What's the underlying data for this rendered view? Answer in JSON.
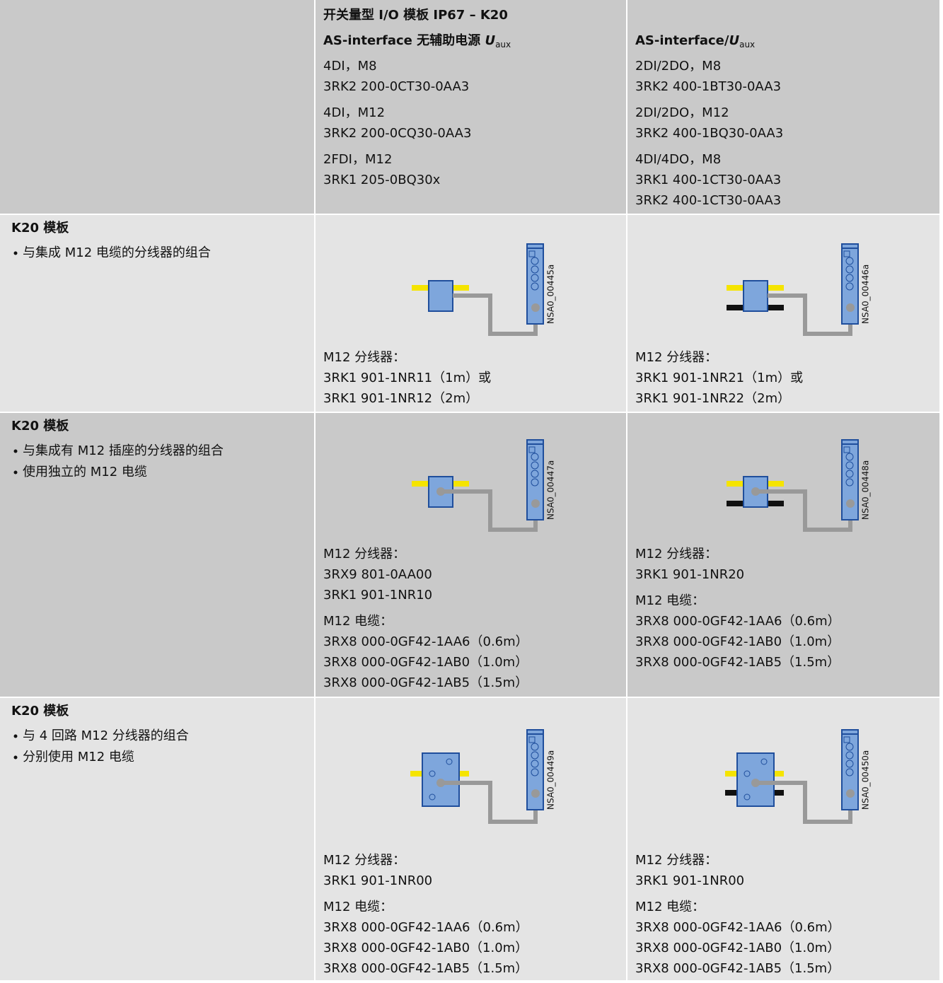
{
  "header": {
    "col2": {
      "title": "开关量型 I/O 模板 IP67 – K20",
      "subtitle": {
        "prefix": "AS-interface 无辅助电源 ",
        "var": "U",
        "sub": "aux"
      },
      "items": [
        [
          "4DI，M8",
          "3RK2 200-0CT30-0AA3"
        ],
        [
          "4DI，M12",
          "3RK2 200-0CQ30-0AA3"
        ],
        [
          "2FDI，M12",
          "3RK1 205-0BQ30x"
        ]
      ]
    },
    "col3": {
      "subtitle": {
        "prefix": "AS-interface/",
        "var": "U",
        "sub": "aux"
      },
      "items": [
        [
          "2DI/2DO，M8",
          "3RK2 400-1BT30-0AA3"
        ],
        [
          "2DI/2DO，M12",
          "3RK2 400-1BQ30-0AA3"
        ],
        [
          "4DI/4DO，M8",
          "3RK1 400-1CT30-0AA3",
          "3RK2 400-1CT30-0AA3"
        ]
      ]
    }
  },
  "rows": [
    {
      "title": "K20 模板",
      "bullets": [
        "与集成 M12 电缆的分线器的组合"
      ],
      "cells": [
        {
          "diagram": "NSA0_00445a",
          "groups": [
            [
              "M12 分线器：",
              "3RK1 901-1NR11（1m）或",
              "3RK1 901-1NR12（2m）"
            ]
          ]
        },
        {
          "diagram": "NSA0_00446a",
          "groups": [
            [
              "M12 分线器：",
              "3RK1 901-1NR21（1m）或",
              "3RK1 901-1NR22（2m）"
            ]
          ]
        }
      ]
    },
    {
      "title": "K20 模板",
      "bullets": [
        "与集成有 M12 插座的分线器的组合",
        "使用独立的 M12 电缆"
      ],
      "cells": [
        {
          "diagram": "NSA0_00447a",
          "groups": [
            [
              "M12 分线器：",
              "3RX9 801-0AA00",
              "3RK1 901-1NR10"
            ],
            [
              "M12 电缆：",
              "3RX8 000-0GF42-1AA6（0.6m）",
              "3RX8 000-0GF42-1AB0（1.0m）",
              "3RX8 000-0GF42-1AB5（1.5m）"
            ]
          ]
        },
        {
          "diagram": "NSA0_00448a",
          "groups": [
            [
              "M12 分线器：",
              "3RK1 901-1NR20"
            ],
            [
              "M12 电缆：",
              "3RX8 000-0GF42-1AA6（0.6m）",
              "3RX8 000-0GF42-1AB0（1.0m）",
              "3RX8 000-0GF42-1AB5（1.5m）"
            ]
          ]
        }
      ]
    },
    {
      "title": "K20 模板",
      "bullets": [
        "与 4 回路 M12 分线器的组合",
        "分别使用 M12 电缆"
      ],
      "cells": [
        {
          "diagram": "NSA0_00449a",
          "groups": [
            [
              "M12 分线器：",
              "3RK1 901-1NR00"
            ],
            [
              "M12 电缆：",
              "3RX8 000-0GF42-1AA6（0.6m）",
              "3RX8 000-0GF42-1AB0（1.0m）",
              "3RX8 000-0GF42-1AB5（1.5m）"
            ]
          ]
        },
        {
          "diagram": "NSA0_00450a",
          "groups": [
            [
              "M12 分线器：",
              "3RK1 901-1NR00"
            ],
            [
              "M12 电缆：",
              "3RX8 000-0GF42-1AA6（0.6m）",
              "3RX8 000-0GF42-1AB0（1.0m）",
              "3RX8 000-0GF42-1AB5（1.5m）"
            ]
          ]
        }
      ]
    }
  ]
}
